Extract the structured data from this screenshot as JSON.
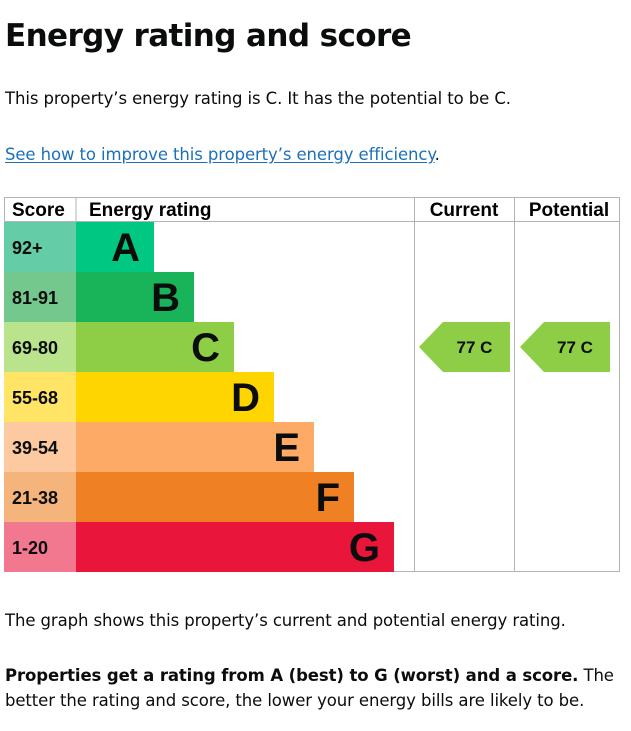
{
  "heading": "Energy rating and score",
  "lead_text": "This property’s energy rating is C. It has the potential to be C.",
  "improve_link": "See how to improve this property’s energy efficiency",
  "improve_link_suffix": ".",
  "graph_note": "The graph shows this property’s current and potential energy rating.",
  "footer_bold": "Properties get a rating from A (best) to G (worst) and a score.",
  "footer_text": " The better the rating and score, the lower your energy bills are likely to be.",
  "chart_data": {
    "type": "bar",
    "headers": {
      "score": "Score",
      "rating": "Energy rating",
      "current": "Current",
      "potential": "Potential"
    },
    "categories": [
      "A",
      "B",
      "C",
      "D",
      "E",
      "F",
      "G"
    ],
    "score_ranges": [
      "92+",
      "81-91",
      "69-80",
      "55-68",
      "39-54",
      "21-38",
      "1-20"
    ],
    "colors": [
      "#00c781",
      "#19b459",
      "#8dce46",
      "#ffd500",
      "#fcaa65",
      "#ef8023",
      "#e9153b"
    ],
    "score_colors": [
      "#64cca6",
      "#74c88e",
      "#b9e48c",
      "#ffe466",
      "#fdc9a0",
      "#f5b47b",
      "#f27890"
    ],
    "current": {
      "score": 77,
      "rating": "C",
      "label": "77 C",
      "color": "#8dce46"
    },
    "potential": {
      "score": 77,
      "rating": "C",
      "label": "77 C",
      "color": "#8dce46"
    }
  }
}
